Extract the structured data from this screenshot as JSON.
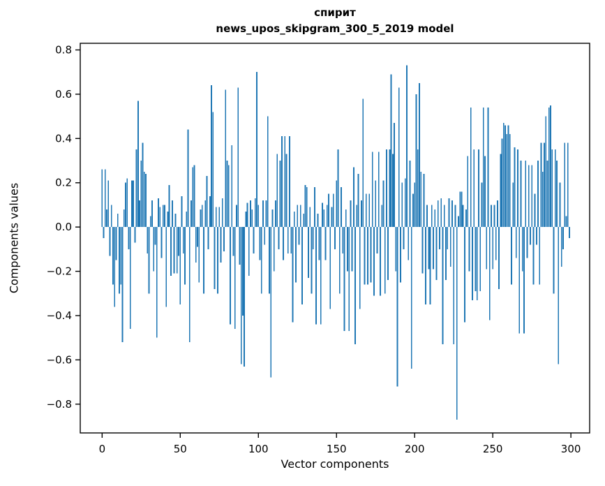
{
  "chart_data": {
    "type": "bar",
    "title": "спирит",
    "subtitle": "news_upos_skipgram_300_5_2019 model",
    "xlabel": "Vector components",
    "ylabel": "Components values",
    "bar_color": "#1f77b4",
    "background_color": "#ffffff",
    "grid": false,
    "legend": "none",
    "xlim": [
      -14,
      312
    ],
    "ylim": [
      -0.93,
      0.83
    ],
    "xticks": [
      0,
      50,
      100,
      150,
      200,
      250,
      300
    ],
    "xtick_labels": [
      "0",
      "50",
      "100",
      "150",
      "200",
      "250",
      "300"
    ],
    "yticks": [
      -0.8,
      -0.6,
      -0.4,
      -0.2,
      0.0,
      0.2,
      0.4,
      0.6,
      0.8
    ],
    "ytick_labels": [
      "−0.8",
      "−0.6",
      "−0.4",
      "−0.2",
      "0.0",
      "0.2",
      "0.4",
      "0.6",
      "0.8"
    ],
    "x_start": 0,
    "n_components": 300,
    "values": [
      0.26,
      -0.05,
      0.26,
      0.08,
      0.21,
      -0.13,
      0.1,
      -0.26,
      -0.36,
      -0.15,
      0.06,
      -0.3,
      -0.26,
      -0.52,
      0.08,
      0.2,
      0.22,
      -0.1,
      -0.46,
      0.21,
      0.21,
      -0.07,
      0.35,
      0.57,
      0.12,
      0.3,
      0.38,
      0.25,
      0.24,
      -0.12,
      -0.3,
      0.05,
      0.12,
      -0.2,
      -0.08,
      -0.5,
      0.13,
      0.09,
      -0.14,
      0.1,
      0.1,
      -0.36,
      0.07,
      0.19,
      -0.22,
      0.12,
      -0.21,
      0.06,
      -0.21,
      -0.13,
      -0.35,
      0.14,
      -0.12,
      -0.26,
      0.07,
      0.44,
      -0.52,
      0.12,
      0.27,
      0.28,
      -0.16,
      -0.09,
      -0.25,
      0.08,
      0.1,
      -0.3,
      0.12,
      0.23,
      -0.1,
      0.14,
      0.64,
      0.52,
      -0.28,
      0.09,
      -0.3,
      0.09,
      -0.16,
      0.13,
      -0.11,
      0.62,
      0.3,
      0.28,
      -0.44,
      0.37,
      -0.13,
      -0.46,
      0.1,
      0.63,
      -0.17,
      -0.62,
      -0.4,
      -0.63,
      0.07,
      0.11,
      -0.22,
      0.12,
      0.08,
      -0.12,
      0.13,
      0.7,
      0.1,
      -0.15,
      -0.3,
      0.12,
      -0.08,
      0.12,
      0.5,
      -0.3,
      -0.68,
      0.08,
      -0.2,
      0.12,
      0.33,
      -0.1,
      0.3,
      0.41,
      -0.15,
      0.41,
      0.33,
      -0.12,
      0.41,
      -0.12,
      -0.43,
      0.07,
      -0.25,
      0.1,
      -0.08,
      0.1,
      -0.35,
      0.06,
      0.19,
      0.18,
      -0.23,
      0.09,
      -0.3,
      -0.1,
      0.18,
      -0.44,
      0.06,
      -0.15,
      -0.44,
      0.11,
      0.08,
      -0.15,
      0.1,
      0.15,
      -0.37,
      0.09,
      0.15,
      -0.1,
      0.21,
      0.35,
      -0.3,
      0.18,
      -0.12,
      -0.47,
      0.08,
      -0.2,
      -0.47,
      0.12,
      -0.2,
      0.27,
      -0.53,
      0.1,
      0.24,
      -0.37,
      0.12,
      0.58,
      -0.26,
      0.15,
      -0.26,
      0.15,
      -0.25,
      0.34,
      -0.31,
      0.21,
      -0.12,
      0.34,
      -0.31,
      0.1,
      0.21,
      -0.3,
      0.35,
      -0.24,
      0.35,
      0.69,
      0.33,
      0.47,
      -0.2,
      -0.72,
      0.63,
      -0.25,
      0.2,
      -0.1,
      0.22,
      0.73,
      -0.15,
      0.3,
      -0.64,
      0.15,
      0.2,
      0.6,
      0.35,
      0.65,
      0.25,
      -0.21,
      0.24,
      -0.35,
      0.1,
      -0.19,
      -0.35,
      0.1,
      -0.19,
      0.08,
      -0.24,
      0.12,
      -0.1,
      0.13,
      -0.53,
      0.1,
      -0.24,
      -0.1,
      0.13,
      -0.18,
      0.12,
      -0.53,
      0.1,
      -0.87,
      0.05,
      0.16,
      0.16,
      0.1,
      -0.43,
      0.08,
      0.32,
      -0.2,
      0.54,
      -0.33,
      0.35,
      -0.29,
      -0.33,
      0.35,
      -0.29,
      0.2,
      0.54,
      0.32,
      -0.19,
      0.54,
      -0.42,
      0.1,
      -0.19,
      0.1,
      -0.15,
      0.12,
      -0.28,
      0.33,
      0.4,
      0.47,
      0.46,
      0.42,
      0.46,
      0.42,
      -0.26,
      0.2,
      0.36,
      -0.14,
      0.35,
      -0.48,
      0.3,
      -0.2,
      -0.48,
      0.3,
      -0.14,
      0.28,
      -0.08,
      0.28,
      -0.26,
      0.15,
      -0.08,
      0.3,
      -0.26,
      0.38,
      0.25,
      0.38,
      0.5,
      0.3,
      0.54,
      0.55,
      0.35,
      -0.3,
      0.35,
      0.3,
      -0.62,
      0.2,
      -0.18,
      -0.1,
      0.38,
      0.05,
      0.38,
      -0.05
    ]
  }
}
